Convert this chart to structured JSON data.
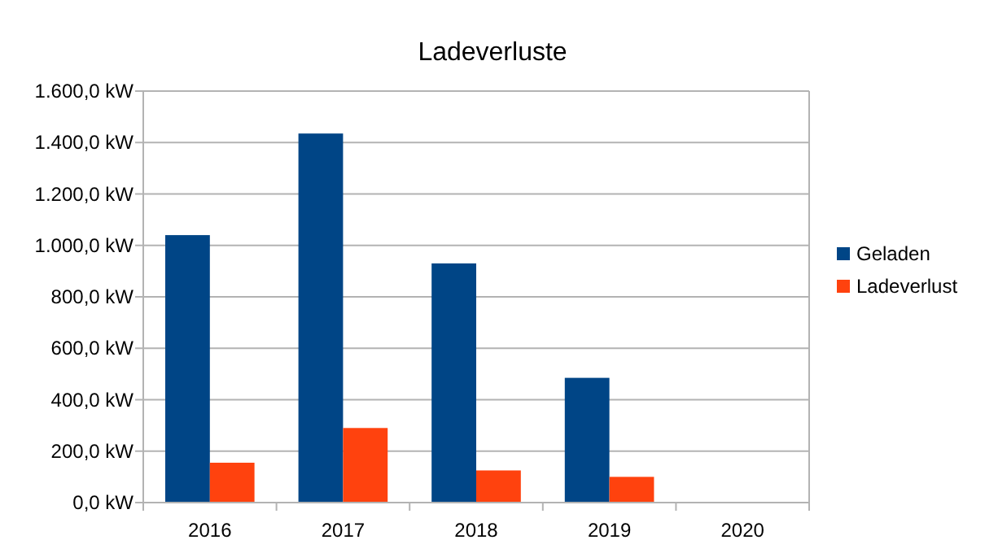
{
  "chart_data": {
    "type": "bar",
    "title": "Ladeverluste",
    "categories": [
      "2016",
      "2017",
      "2018",
      "2019",
      "2020"
    ],
    "series": [
      {
        "name": "Geladen",
        "color": "#004586",
        "values": [
          1040,
          1435,
          930,
          485,
          0
        ]
      },
      {
        "name": "Ladeverlust",
        "color": "#ff420e",
        "values": [
          155,
          290,
          125,
          100,
          0
        ]
      }
    ],
    "ylim": [
      0,
      1600
    ],
    "yticks": [
      {
        "value": 0,
        "label": "0,0 kW"
      },
      {
        "value": 200,
        "label": "200,0 kW"
      },
      {
        "value": 400,
        "label": "400,0 kW"
      },
      {
        "value": 600,
        "label": "600,0 kW"
      },
      {
        "value": 800,
        "label": "800,0 kW"
      },
      {
        "value": 1000,
        "label": "1.000,0 kW"
      },
      {
        "value": 1200,
        "label": "1.200,0 kW"
      },
      {
        "value": 1400,
        "label": "1.400,0 kW"
      },
      {
        "value": 1600,
        "label": "1.600,0 kW"
      }
    ],
    "grid": "y",
    "legend": "right"
  }
}
